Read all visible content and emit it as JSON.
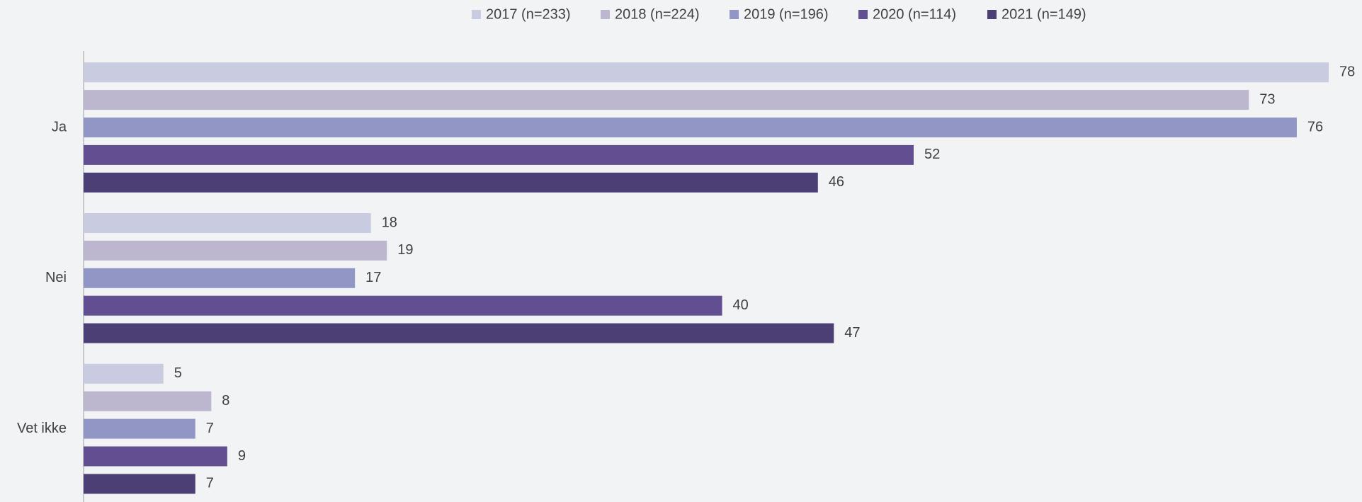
{
  "chart_data": {
    "type": "hbar",
    "categories": [
      "Ja",
      "Nei",
      "Vet ikke"
    ],
    "series": [
      {
        "name": "2017 (n=233)",
        "color": "#c9cbe0",
        "values": [
          78,
          18,
          5
        ]
      },
      {
        "name": "2018 (n=224)",
        "color": "#bcb6cf",
        "values": [
          73,
          19,
          8
        ]
      },
      {
        "name": "2019 (n=196)",
        "color": "#9196c5",
        "values": [
          76,
          17,
          7
        ]
      },
      {
        "name": "2020 (n=114)",
        "color": "#614f91",
        "values": [
          52,
          40,
          9
        ]
      },
      {
        "name": "2021 (n=149)",
        "color": "#4b3f75",
        "values": [
          46,
          47,
          7
        ]
      }
    ],
    "legend": "top"
  }
}
